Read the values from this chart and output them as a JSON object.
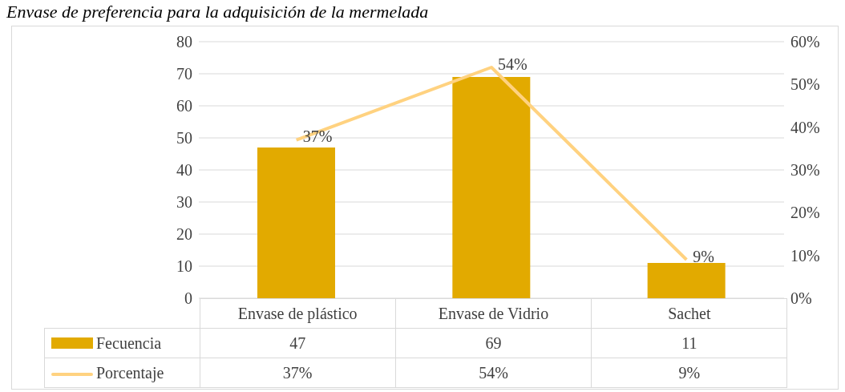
{
  "chart_data": {
    "type": "bar",
    "title": "Envase de preferencia para la adquisición de la mermelada",
    "categories": [
      "Envase de plástico",
      "Envase de Vidrio",
      "Sachet"
    ],
    "series": [
      {
        "name": "Fecuencia",
        "color": "#e2aa00",
        "values": [
          47,
          69,
          11
        ]
      },
      {
        "name": "Porcentaje",
        "type": "line",
        "axis": "y2",
        "color": "#ffd280",
        "values": [
          37,
          54,
          9
        ],
        "value_labels": [
          "37%",
          "54%",
          "9%"
        ]
      }
    ],
    "ylim": [
      0,
      80
    ],
    "yticks": [
      0,
      10,
      20,
      30,
      40,
      50,
      60,
      70,
      80
    ],
    "y2lim": [
      0,
      60
    ],
    "y2ticks": [
      {
        "value": 0,
        "label": "0%"
      },
      {
        "value": 10,
        "label": "10%"
      },
      {
        "value": 20,
        "label": "20%"
      },
      {
        "value": 30,
        "label": "30%"
      },
      {
        "value": 40,
        "label": "40%"
      },
      {
        "value": 50,
        "label": "50%"
      },
      {
        "value": 60,
        "label": "60%"
      }
    ],
    "grid": "y",
    "legend": "bottom",
    "data_labels": true,
    "marker": "none",
    "line_style": "solid"
  }
}
